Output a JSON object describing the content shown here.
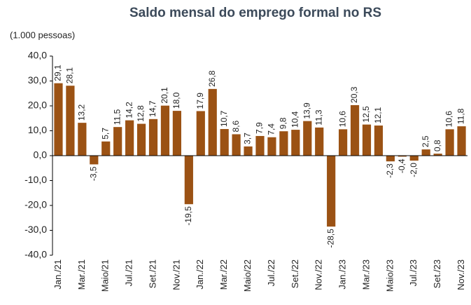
{
  "chart_data": {
    "type": "bar",
    "title": "Saldo mensal do emprego formal no RS",
    "subtitle": "(1.000 pessoas)",
    "color": "#9b5214",
    "categories": [
      "Jan./21",
      null,
      "Mar./21",
      null,
      "Maio/21",
      null,
      "Jul./21",
      null,
      "Set./21",
      null,
      "Nov./21",
      null,
      "Jan./22",
      null,
      "Mar./22",
      null,
      "Maio/22",
      null,
      "Jul./22",
      null,
      "Set./22",
      null,
      "Nov./22",
      null,
      "Jan./23",
      null,
      "Mar./23",
      null,
      "Maio/23",
      null,
      "Jul./23",
      null,
      "Set./23",
      null,
      "Nov./23"
    ],
    "values": [
      29.1,
      28.1,
      13.2,
      -3.5,
      5.7,
      11.5,
      14.2,
      12.8,
      14.7,
      20.1,
      18.0,
      -19.5,
      17.9,
      26.8,
      10.7,
      8.6,
      3.7,
      7.9,
      7.4,
      9.8,
      10.4,
      13.9,
      11.3,
      -28.5,
      10.6,
      20.3,
      12.5,
      12.1,
      -2.3,
      -0.4,
      -2.0,
      2.5,
      0.8,
      10.6,
      11.8
    ],
    "value_labels": [
      "29,1",
      "28,1",
      "13,2",
      "-3,5",
      "5,7",
      "11,5",
      "14,2",
      "12,8",
      "14,7",
      "20,1",
      "18,0",
      "-19,5",
      "17,9",
      "26,8",
      "10,7",
      "8,6",
      "3,7",
      "7,9",
      "7,4",
      "9,8",
      "10,4",
      "13,9",
      "11,3",
      "-28,5",
      "10,6",
      "20,3",
      "12,5",
      "12,1",
      "-2,3",
      "-0,4",
      "-2,0",
      "2,5",
      "0,8",
      "10,6",
      "11,8"
    ],
    "ylim": [
      -40,
      40
    ],
    "yticks": [
      {
        "value": -40,
        "label": "-40,0"
      },
      {
        "value": -30,
        "label": "-30,0"
      },
      {
        "value": -20,
        "label": "-20,0"
      },
      {
        "value": -10,
        "label": "-10,0"
      },
      {
        "value": 0,
        "label": "0,0"
      },
      {
        "value": 10,
        "label": "10,0"
      },
      {
        "value": 20,
        "label": "20,0"
      },
      {
        "value": 30,
        "label": "30,0"
      },
      {
        "value": 40,
        "label": "40,0"
      }
    ],
    "grid": false
  }
}
